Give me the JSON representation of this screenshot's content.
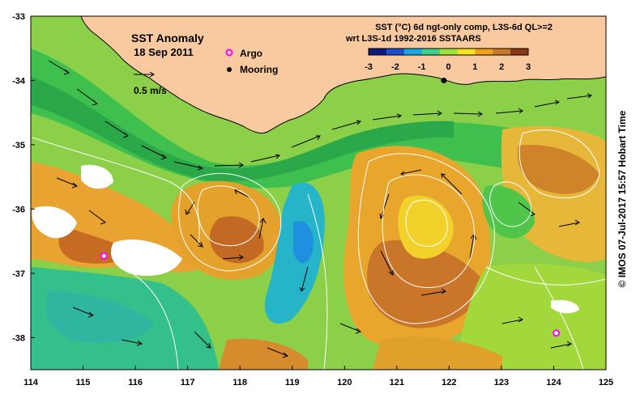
{
  "map": {
    "title": "SST Anomaly",
    "date": "18 Sep 2011",
    "vector_scale_label": "0.5 m/s",
    "legend": {
      "argo_label": "Argo",
      "mooring_label": "Mooring",
      "argo_color": "#ff00ff",
      "mooring_color": "#000000"
    },
    "colorbar": {
      "title_line1": "SST (°C) 6d ngt-only comp, L3S-6d QL>=2",
      "title_line2": "wrt L3S-1d 1992-2016 SSTAARS",
      "ticks": [
        "-3",
        "-2",
        "-1",
        "0",
        "1",
        "2",
        "3"
      ],
      "colors": [
        "#0b1a7a",
        "#1b4fd1",
        "#18a8e0",
        "#3ad18a",
        "#9be23a",
        "#f4e21e",
        "#f0a21a",
        "#c87a2a",
        "#8a3a14"
      ]
    },
    "x_ticks": [
      "114",
      "115",
      "116",
      "117",
      "118",
      "119",
      "120",
      "121",
      "122",
      "123",
      "124",
      "125"
    ],
    "y_ticks": [
      "-33",
      "-34",
      "-35",
      "-36",
      "-37",
      "-38"
    ],
    "lon_range": [
      114,
      125
    ],
    "lat_range": [
      -38.5,
      -33
    ],
    "argo_floats": [
      {
        "lon": 115.4,
        "lat": -36.73
      },
      {
        "lon": 124.05,
        "lat": -37.93
      }
    ],
    "mooring": {
      "lon": 121.9,
      "lat": -34.0
    },
    "credit": "© IMOS 07-Jul-2017 15:57 Hobart Time",
    "colors": {
      "land": "#f9c9a0",
      "sea_base": "#86c84a",
      "contour": "#ffffff",
      "frame": "#000000"
    }
  }
}
